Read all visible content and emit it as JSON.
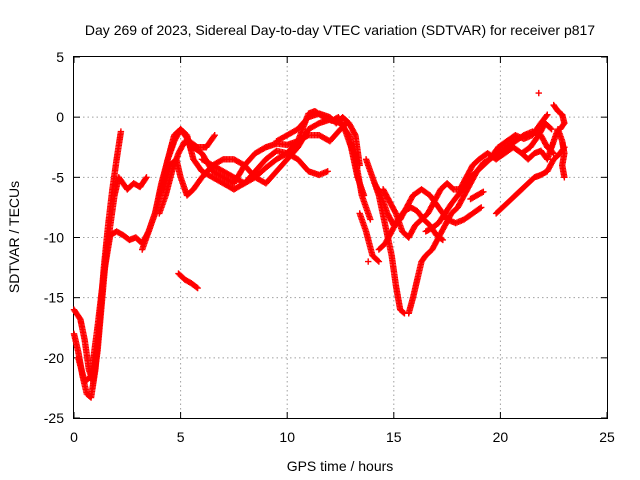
{
  "chart_data": {
    "type": "scatter",
    "title": "Day 269 of 2023, Sidereal Day-to-day VTEC variation (SDTVAR) for receiver p817",
    "xlabel": "GPS time / hours",
    "ylabel": "SDTVAR / TECUs",
    "xlim": [
      0,
      25
    ],
    "ylim": [
      -25,
      5
    ],
    "xticks": [
      "0",
      "5",
      "10",
      "15",
      "20",
      "25"
    ],
    "yticks": [
      "-25",
      "-20",
      "-15",
      "-10",
      "-5",
      "0",
      "5"
    ],
    "grid": true,
    "marker": "plus",
    "color": "#ff0000",
    "series": [
      {
        "values": [
          [
            0.0,
            -16.0
          ],
          [
            0.3,
            -16.8
          ],
          [
            0.5,
            -18.5
          ],
          [
            0.7,
            -21.0
          ],
          [
            0.9,
            -22.0
          ],
          [
            1.1,
            -19.5
          ],
          [
            1.3,
            -15.5
          ],
          [
            1.5,
            -11.5
          ],
          [
            1.7,
            -9.0
          ],
          [
            1.9,
            -6.5
          ],
          [
            2.1,
            -5.0
          ],
          [
            2.3,
            -5.5
          ],
          [
            2.5,
            -6.0
          ],
          [
            2.8,
            -5.5
          ],
          [
            3.1,
            -5.8
          ],
          [
            3.4,
            -5.0
          ]
        ]
      },
      {
        "values": [
          [
            0.0,
            -18.0
          ],
          [
            0.2,
            -19.5
          ],
          [
            0.4,
            -21.5
          ],
          [
            0.6,
            -23.0
          ],
          [
            0.8,
            -23.3
          ],
          [
            1.0,
            -21.0
          ],
          [
            1.2,
            -17.0
          ],
          [
            1.4,
            -12.5
          ],
          [
            1.6,
            -9.0
          ],
          [
            1.8,
            -6.0
          ],
          [
            2.0,
            -3.5
          ],
          [
            2.2,
            -1.2
          ]
        ]
      },
      {
        "values": [
          [
            0.2,
            -20.0
          ],
          [
            0.5,
            -22.0
          ],
          [
            0.8,
            -21.5
          ],
          [
            1.1,
            -17.5
          ],
          [
            1.4,
            -13.0
          ],
          [
            1.7,
            -9.8
          ],
          [
            2.0,
            -9.5
          ],
          [
            2.3,
            -9.8
          ],
          [
            2.6,
            -10.2
          ],
          [
            2.9,
            -10.0
          ],
          [
            3.2,
            -10.5
          ],
          [
            3.5,
            -9.5
          ],
          [
            3.8,
            -8.0
          ],
          [
            4.1,
            -6.0
          ],
          [
            4.4,
            -3.5
          ],
          [
            4.7,
            -1.5
          ],
          [
            5.0,
            -1.0
          ],
          [
            5.4,
            -2.0
          ],
          [
            5.8,
            -2.5
          ],
          [
            6.2,
            -2.5
          ],
          [
            6.6,
            -1.5
          ]
        ]
      },
      {
        "values": [
          [
            3.2,
            -11.0
          ],
          [
            3.5,
            -9.5
          ],
          [
            3.8,
            -8.0
          ],
          [
            4.1,
            -5.5
          ],
          [
            4.4,
            -3.5
          ],
          [
            4.7,
            -2.0
          ],
          [
            5.0,
            -1.0
          ],
          [
            5.3,
            -1.5
          ],
          [
            5.6,
            -3.5
          ],
          [
            6.0,
            -4.5
          ],
          [
            6.5,
            -5.0
          ],
          [
            7.0,
            -5.5
          ],
          [
            7.5,
            -6.0
          ],
          [
            8.0,
            -5.5
          ],
          [
            8.5,
            -4.5
          ],
          [
            9.0,
            -3.5
          ],
          [
            9.5,
            -2.8
          ],
          [
            10.0,
            -3.0
          ],
          [
            10.5,
            -3.5
          ],
          [
            11.0,
            -4.5
          ],
          [
            11.5,
            -4.8
          ],
          [
            11.9,
            -4.5
          ]
        ]
      },
      {
        "values": [
          [
            4.0,
            -8.0
          ],
          [
            4.3,
            -6.5
          ],
          [
            4.6,
            -4.5
          ],
          [
            4.9,
            -3.0
          ],
          [
            5.2,
            -2.0
          ],
          [
            5.6,
            -2.5
          ],
          [
            6.0,
            -3.0
          ],
          [
            6.5,
            -4.5
          ],
          [
            7.0,
            -5.0
          ],
          [
            7.5,
            -5.5
          ],
          [
            8.0,
            -4.0
          ],
          [
            8.5,
            -3.0
          ],
          [
            9.0,
            -2.5
          ],
          [
            9.5,
            -2.2
          ],
          [
            10.0,
            -2.3
          ],
          [
            10.5,
            -2.0
          ],
          [
            11.0,
            -1.5
          ],
          [
            11.5,
            -1.5
          ],
          [
            12.0,
            -2.0
          ],
          [
            12.5,
            -1.0
          ],
          [
            12.8,
            -0.5
          ]
        ]
      },
      {
        "values": [
          [
            4.2,
            -6.0
          ],
          [
            4.5,
            -4.0
          ],
          [
            4.8,
            -3.5
          ],
          [
            5.0,
            -5.0
          ],
          [
            5.3,
            -6.5
          ],
          [
            5.6,
            -6.0
          ],
          [
            6.0,
            -5.0
          ],
          [
            6.5,
            -4.0
          ],
          [
            7.0,
            -3.5
          ],
          [
            7.5,
            -3.5
          ],
          [
            8.0,
            -4.0
          ],
          [
            8.5,
            -5.0
          ],
          [
            9.0,
            -5.5
          ],
          [
            9.5,
            -4.5
          ],
          [
            10.0,
            -3.5
          ],
          [
            10.5,
            -2.5
          ],
          [
            11.0,
            -1.0
          ],
          [
            11.5,
            -0.5
          ],
          [
            12.0,
            -0.2
          ],
          [
            12.5,
            -0.5
          ],
          [
            12.9,
            -1.5
          ],
          [
            13.2,
            -3.5
          ],
          [
            13.5,
            -6.5
          ],
          [
            13.9,
            -8.5
          ]
        ]
      },
      {
        "values": [
          [
            6.0,
            -3.5
          ],
          [
            6.5,
            -4.0
          ],
          [
            7.0,
            -4.5
          ],
          [
            7.5,
            -5.0
          ],
          [
            8.0,
            -5.5
          ],
          [
            8.5,
            -5.0
          ],
          [
            9.0,
            -4.2
          ],
          [
            9.5,
            -3.5
          ],
          [
            10.0,
            -3.0
          ],
          [
            10.5,
            -2.0
          ],
          [
            11.0,
            0.3
          ],
          [
            11.3,
            0.5
          ],
          [
            11.7,
            0.0
          ],
          [
            12.1,
            -0.3
          ],
          [
            12.4,
            0.0
          ],
          [
            12.7,
            -1.0
          ],
          [
            13.0,
            -2.5
          ],
          [
            13.3,
            -5.0
          ],
          [
            13.6,
            -6.5
          ]
        ]
      },
      {
        "values": [
          [
            9.5,
            -2.0
          ],
          [
            10.0,
            -1.5
          ],
          [
            10.5,
            -1.0
          ],
          [
            11.0,
            0.0
          ],
          [
            11.5,
            0.3
          ],
          [
            12.0,
            0.0
          ],
          [
            12.3,
            -0.5
          ],
          [
            12.6,
            0.0
          ],
          [
            12.9,
            -0.5
          ],
          [
            13.2,
            -1.5
          ],
          [
            13.4,
            -4.0
          ]
        ]
      },
      {
        "values": [
          [
            4.9,
            -13.0
          ],
          [
            5.2,
            -13.5
          ],
          [
            5.5,
            -13.8
          ],
          [
            5.8,
            -14.2
          ]
        ]
      },
      {
        "values": [
          [
            13.4,
            -8.0
          ],
          [
            13.7,
            -9.5
          ],
          [
            14.0,
            -11.5
          ],
          [
            14.3,
            -12.0
          ]
        ]
      },
      {
        "values": [
          [
            13.7,
            -3.5
          ],
          [
            14.0,
            -5.0
          ],
          [
            14.3,
            -6.5
          ],
          [
            14.6,
            -9.0
          ],
          [
            14.9,
            -11.5
          ],
          [
            15.1,
            -14.0
          ],
          [
            15.3,
            -16.0
          ],
          [
            15.5,
            -16.3
          ]
        ]
      },
      {
        "values": [
          [
            14.1,
            -5.5
          ],
          [
            14.4,
            -6.5
          ],
          [
            14.7,
            -8.0
          ],
          [
            15.0,
            -9.0
          ],
          [
            15.3,
            -8.5
          ],
          [
            15.6,
            -7.5
          ],
          [
            15.9,
            -6.5
          ],
          [
            16.3,
            -6.0
          ],
          [
            16.7,
            -6.5
          ],
          [
            17.1,
            -7.5
          ],
          [
            17.5,
            -8.5
          ],
          [
            17.9,
            -8.8
          ],
          [
            18.3,
            -8.5
          ],
          [
            18.7,
            -8.0
          ],
          [
            19.1,
            -7.5
          ]
        ]
      },
      {
        "values": [
          [
            14.3,
            -11.0
          ],
          [
            14.6,
            -10.5
          ],
          [
            14.9,
            -9.5
          ],
          [
            15.2,
            -8.5
          ],
          [
            15.5,
            -7.8
          ],
          [
            15.8,
            -7.5
          ],
          [
            16.1,
            -7.8
          ],
          [
            16.4,
            -8.5
          ],
          [
            16.7,
            -9.0
          ],
          [
            17.0,
            -9.8
          ],
          [
            17.3,
            -10.2
          ]
        ]
      },
      {
        "values": [
          [
            14.5,
            -6.0
          ],
          [
            14.8,
            -7.0
          ],
          [
            15.1,
            -8.0
          ],
          [
            15.4,
            -9.5
          ],
          [
            15.7,
            -10.0
          ],
          [
            16.0,
            -9.0
          ],
          [
            16.3,
            -8.5
          ],
          [
            16.6,
            -8.0
          ],
          [
            16.9,
            -7.0
          ],
          [
            17.2,
            -6.0
          ],
          [
            17.5,
            -5.5
          ],
          [
            17.8,
            -6.0
          ],
          [
            18.1,
            -6.0
          ],
          [
            18.4,
            -5.0
          ],
          [
            18.7,
            -4.0
          ],
          [
            19.0,
            -3.5
          ],
          [
            19.4,
            -3.0
          ],
          [
            19.8,
            -3.5
          ],
          [
            20.2,
            -3.0
          ],
          [
            20.6,
            -2.5
          ],
          [
            21.0,
            -3.0
          ],
          [
            21.4,
            -2.5
          ],
          [
            21.8,
            -1.5
          ],
          [
            22.1,
            -0.5
          ],
          [
            22.4,
            -1.0
          ]
        ]
      },
      {
        "values": [
          [
            15.7,
            -16.3
          ],
          [
            15.9,
            -15.0
          ],
          [
            16.1,
            -13.5
          ],
          [
            16.3,
            -12.0
          ],
          [
            16.5,
            -11.5
          ],
          [
            16.8,
            -11.0
          ],
          [
            17.1,
            -10.0
          ],
          [
            17.4,
            -9.0
          ],
          [
            17.7,
            -8.0
          ],
          [
            18.0,
            -7.5
          ],
          [
            18.3,
            -6.5
          ],
          [
            18.6,
            -5.5
          ],
          [
            18.9,
            -4.5
          ],
          [
            19.2,
            -3.8
          ],
          [
            19.5,
            -3.5
          ],
          [
            19.9,
            -2.5
          ],
          [
            20.3,
            -2.0
          ],
          [
            20.7,
            -1.5
          ],
          [
            21.1,
            -1.8
          ],
          [
            21.5,
            -1.5
          ],
          [
            21.9,
            -0.5
          ],
          [
            22.2,
            0.2
          ]
        ]
      },
      {
        "values": [
          [
            16.5,
            -9.5
          ],
          [
            16.8,
            -9.2
          ],
          [
            17.1,
            -8.8
          ],
          [
            17.4,
            -8.0
          ],
          [
            17.7,
            -7.2
          ],
          [
            18.0,
            -6.5
          ],
          [
            18.3,
            -5.8
          ],
          [
            18.6,
            -5.0
          ],
          [
            18.9,
            -4.5
          ],
          [
            19.2,
            -4.0
          ],
          [
            19.5,
            -3.5
          ],
          [
            19.9,
            -3.0
          ],
          [
            20.3,
            -2.5
          ],
          [
            20.7,
            -2.0
          ],
          [
            21.1,
            -1.5
          ],
          [
            21.5,
            -1.2
          ],
          [
            21.9,
            -1.5
          ],
          [
            22.2,
            -2.5
          ],
          [
            22.5,
            -3.0
          ]
        ]
      },
      {
        "values": [
          [
            19.8,
            -8.0
          ],
          [
            20.1,
            -7.5
          ],
          [
            20.4,
            -7.0
          ],
          [
            20.7,
            -6.5
          ],
          [
            21.0,
            -6.0
          ],
          [
            21.3,
            -5.5
          ],
          [
            21.6,
            -5.0
          ],
          [
            21.9,
            -4.8
          ],
          [
            22.2,
            -4.5
          ],
          [
            22.5,
            -3.5
          ],
          [
            22.8,
            -3.0
          ],
          [
            23.0,
            -2.5
          ]
        ]
      },
      {
        "values": [
          [
            18.6,
            -6.8
          ],
          [
            18.9,
            -6.5
          ],
          [
            19.2,
            -6.2
          ]
        ]
      },
      {
        "values": [
          [
            21.0,
            -3.0
          ],
          [
            21.3,
            -3.5
          ],
          [
            21.6,
            -3.0
          ],
          [
            21.9,
            -2.8
          ],
          [
            22.2,
            -3.5
          ],
          [
            22.5,
            -2.0
          ],
          [
            22.7,
            -1.0
          ],
          [
            22.9,
            -2.0
          ],
          [
            23.0,
            -3.0
          ],
          [
            22.9,
            -4.0
          ],
          [
            23.0,
            -5.0
          ]
        ]
      },
      {
        "values": [
          [
            22.5,
            1.0
          ],
          [
            22.7,
            0.5
          ],
          [
            22.9,
            0.2
          ],
          [
            23.0,
            -0.5
          ],
          [
            22.8,
            -1.0
          ]
        ]
      },
      {
        "values": [
          [
            21.8,
            2.0
          ]
        ]
      },
      {
        "values": [
          [
            13.8,
            -12.0
          ]
        ]
      }
    ]
  }
}
